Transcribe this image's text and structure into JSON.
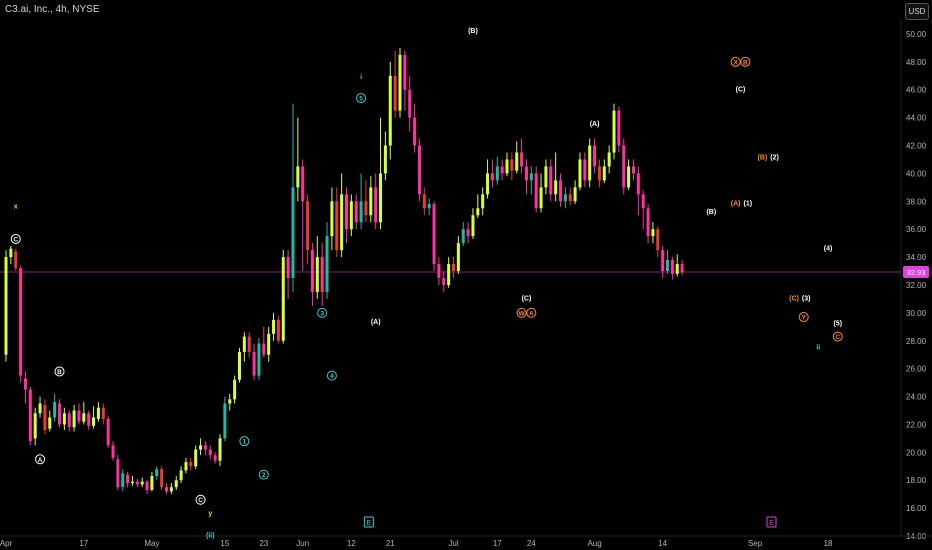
{
  "header": {
    "title": "C3.ai, Inc., 4h, NYSE",
    "currency_button": "USD"
  },
  "colors": {
    "up": "#d7ff3b",
    "up_alt": "#25b6a4",
    "down": "#ff2fa4",
    "down_alt": "#e83a3a",
    "hline": "#8a1a8a",
    "price_label_bg": "#e040e0",
    "cyan": "#2ad4d4",
    "orange": "#ff8c1a",
    "yellow": "#ffd21a",
    "white": "#ffffff"
  },
  "chart_data": {
    "type": "candlestick",
    "ylim": [
      14,
      51
    ],
    "y_ticks": [
      "14.00",
      "16.00",
      "18.00",
      "20.00",
      "22.00",
      "24.00",
      "26.00",
      "28.00",
      "30.00",
      "32.00",
      "34.00",
      "36.00",
      "38.00",
      "40.00",
      "42.00",
      "44.00",
      "46.00",
      "48.00",
      "50.00"
    ],
    "x_ticks": [
      {
        "label": "Apr",
        "x": 0
      },
      {
        "label": "17",
        "x": 16
      },
      {
        "label": "May",
        "x": 30
      },
      {
        "label": "15",
        "x": 45
      },
      {
        "label": "23",
        "x": 53
      },
      {
        "label": "Jun",
        "x": 61
      },
      {
        "label": "12",
        "x": 71
      },
      {
        "label": "21",
        "x": 79
      },
      {
        "label": "Jul",
        "x": 92
      },
      {
        "label": "17",
        "x": 101
      },
      {
        "label": "24",
        "x": 108
      },
      {
        "label": "Aug",
        "x": 121
      },
      {
        "label": "14",
        "x": 135
      },
      {
        "label": "Sep",
        "x": 154
      },
      {
        "label": "18",
        "x": 169
      }
    ],
    "x_range": [
      0,
      184
    ],
    "last_price": "32.93",
    "last_price_value": 32.93,
    "candles": [
      [
        0,
        27,
        34,
        34.5,
        26.5
      ],
      [
        1,
        34,
        34.6,
        34.8,
        33.5
      ],
      [
        2,
        34.4,
        33.2,
        34.6,
        33
      ],
      [
        3,
        33.2,
        25.5,
        33.4,
        25
      ],
      [
        4,
        25.3,
        24.5,
        25.8,
        23.5
      ],
      [
        5,
        24.5,
        20.8,
        24.7,
        20.5
      ],
      [
        6,
        21,
        22.8,
        23.2,
        20.5
      ],
      [
        7,
        22.8,
        23.5,
        24,
        22.5
      ],
      [
        8,
        23.4,
        21.6,
        23.8,
        21.3
      ],
      [
        9,
        21.7,
        22.5,
        23,
        21.5
      ],
      [
        10,
        22.5,
        23.6,
        24.2,
        22.2
      ],
      [
        11,
        23.5,
        22,
        23.8,
        21.8
      ],
      [
        12,
        22,
        22.8,
        23.2,
        21.6
      ],
      [
        13,
        22.8,
        21.8,
        23,
        21.5
      ],
      [
        14,
        21.8,
        23,
        23.4,
        21.5
      ],
      [
        15,
        23,
        22.2,
        23.5,
        22
      ],
      [
        16,
        22.2,
        22.8,
        23.6,
        22
      ],
      [
        17,
        22.8,
        21.9,
        23,
        21.6
      ],
      [
        18,
        21.9,
        22.5,
        23.3,
        21.7
      ],
      [
        19,
        22.4,
        23.2,
        23.6,
        22.2
      ],
      [
        20,
        23.2,
        22.4,
        23.5,
        22
      ],
      [
        21,
        22.4,
        20.5,
        22.6,
        20.3
      ],
      [
        22,
        20.5,
        19.6,
        20.8,
        19.4
      ],
      [
        23,
        19.5,
        17.5,
        19.8,
        17.3
      ],
      [
        24,
        17.5,
        18.5,
        18.8,
        17.2
      ],
      [
        25,
        18.4,
        17.8,
        18.6,
        17.5
      ],
      [
        26,
        17.8,
        17.9,
        18.3,
        17.6
      ],
      [
        27,
        17.9,
        17.7,
        18.1,
        17.5
      ],
      [
        28,
        17.7,
        17.9,
        18.2,
        17.5
      ],
      [
        29,
        17.9,
        17.3,
        18,
        17
      ],
      [
        30,
        17.3,
        18.3,
        18.6,
        17.2
      ],
      [
        31,
        18.3,
        18.8,
        19,
        18
      ],
      [
        32,
        18.8,
        17.5,
        19,
        17.3
      ],
      [
        33,
        17.5,
        17.2,
        17.8,
        17
      ],
      [
        34,
        17.2,
        17.5,
        17.8,
        17
      ],
      [
        35,
        17.5,
        18,
        18.3,
        17.3
      ],
      [
        36,
        18,
        18.7,
        19,
        17.8
      ],
      [
        37,
        18.7,
        19.3,
        19.6,
        18.5
      ],
      [
        38,
        19.3,
        19,
        19.6,
        18.7
      ],
      [
        39,
        19,
        20.2,
        20.5,
        18.8
      ],
      [
        40,
        20.2,
        20.5,
        21,
        19.8
      ],
      [
        41,
        20.5,
        20.2,
        20.8,
        19.8
      ],
      [
        42,
        20.2,
        19.8,
        20.5,
        19.5
      ],
      [
        43,
        19.8,
        19.4,
        20,
        19.2
      ],
      [
        44,
        19.4,
        21,
        21.3,
        19
      ],
      [
        45,
        21,
        23.5,
        24,
        20.8
      ],
      [
        46,
        23.5,
        23.8,
        24.2,
        23
      ],
      [
        47,
        23.8,
        25.2,
        25.5,
        23.5
      ],
      [
        48,
        25.2,
        27.2,
        27.5,
        25
      ],
      [
        49,
        27.2,
        28.3,
        28.6,
        26.5
      ],
      [
        50,
        28.3,
        27.2,
        28.6,
        26.8
      ],
      [
        51,
        27.2,
        25.5,
        27.8,
        25.2
      ],
      [
        52,
        25.5,
        27.8,
        28.2,
        25.2
      ],
      [
        53,
        27.8,
        27,
        29,
        26.8
      ],
      [
        54,
        27,
        28.5,
        29,
        26.5
      ],
      [
        55,
        28.5,
        29.5,
        30,
        28
      ],
      [
        56,
        29.5,
        28,
        29.8,
        27.8
      ],
      [
        57,
        28,
        34,
        34.5,
        27.8
      ],
      [
        58,
        34,
        32.5,
        34.5,
        31
      ],
      [
        59,
        32.5,
        39,
        45,
        31.5
      ],
      [
        60,
        39,
        40.5,
        44,
        38
      ],
      [
        61,
        40.5,
        38,
        41,
        33
      ],
      [
        62,
        38,
        34.5,
        38.5,
        33.5
      ],
      [
        63,
        34.5,
        31.5,
        35,
        30.5
      ],
      [
        64,
        31.5,
        34,
        35.5,
        31
      ],
      [
        65,
        34,
        31.5,
        35,
        30.5
      ],
      [
        66,
        31.5,
        35.5,
        36.5,
        31
      ],
      [
        67,
        35.5,
        38,
        39,
        34.5
      ],
      [
        68,
        38,
        34.5,
        39,
        34
      ],
      [
        69,
        34.5,
        38.5,
        40,
        34
      ],
      [
        70,
        38.5,
        36,
        39,
        35
      ],
      [
        71,
        36,
        38,
        38.5,
        35.5
      ],
      [
        72,
        38,
        36.5,
        38.5,
        36
      ],
      [
        73,
        36.5,
        38,
        40,
        36
      ],
      [
        74,
        38,
        37,
        39.5,
        36.5
      ],
      [
        75,
        37,
        39,
        39.8,
        36.5
      ],
      [
        76,
        39,
        36.5,
        40,
        36
      ],
      [
        77,
        36.5,
        40,
        44,
        36
      ],
      [
        78,
        40,
        42,
        43,
        39.5
      ],
      [
        79,
        42,
        47,
        48,
        41
      ],
      [
        80,
        47,
        44.5,
        48.8,
        44
      ],
      [
        81,
        44.5,
        48.5,
        49,
        44
      ],
      [
        82,
        48.5,
        46,
        48.8,
        44.5
      ],
      [
        83,
        46,
        44,
        47,
        43
      ],
      [
        84,
        44,
        42,
        45,
        41.5
      ],
      [
        85,
        42,
        38.5,
        42.5,
        38
      ],
      [
        86,
        38.5,
        37.5,
        39,
        37
      ],
      [
        87,
        37.5,
        37.8,
        38.2,
        37
      ],
      [
        88,
        37.8,
        33.5,
        38,
        33
      ],
      [
        89,
        33.5,
        32.5,
        34,
        32
      ],
      [
        90,
        32.5,
        32,
        33,
        31.5
      ],
      [
        91,
        32,
        33.5,
        34,
        31.8
      ],
      [
        92,
        33.5,
        33,
        34,
        32.5
      ],
      [
        93,
        33,
        35,
        35.5,
        32.8
      ],
      [
        94,
        35,
        36,
        36.5,
        34.8
      ],
      [
        95,
        36,
        35.5,
        36.5,
        35
      ],
      [
        96,
        35.5,
        37,
        37.5,
        35.3
      ],
      [
        97,
        37,
        37.5,
        38.5,
        36.8
      ],
      [
        98,
        37.5,
        38.5,
        39,
        37
      ],
      [
        99,
        38.5,
        40,
        41,
        38.2
      ],
      [
        100,
        40,
        39.5,
        41,
        39
      ],
      [
        101,
        39.5,
        40.5,
        41.2,
        39.2
      ],
      [
        102,
        40.5,
        40,
        41,
        39.5
      ],
      [
        103,
        40,
        41,
        41.5,
        39.8
      ],
      [
        104,
        41,
        40.2,
        41.5,
        39.5
      ],
      [
        105,
        40.2,
        41.5,
        42.3,
        40
      ],
      [
        106,
        41.5,
        40.5,
        42.5,
        40
      ],
      [
        107,
        40.5,
        39.5,
        41,
        38.5
      ],
      [
        108,
        39.5,
        40,
        40.5,
        38.5
      ],
      [
        109,
        40,
        37.5,
        40.5,
        37.2
      ],
      [
        110,
        37.5,
        39,
        40,
        37.2
      ],
      [
        111,
        39,
        40.5,
        41,
        38.5
      ],
      [
        112,
        40.5,
        38.5,
        41,
        38
      ],
      [
        113,
        38.5,
        39.5,
        41.5,
        38
      ],
      [
        114,
        39.5,
        38,
        40,
        37.6
      ],
      [
        115,
        38,
        38.5,
        39,
        37.5
      ],
      [
        116,
        38.5,
        38,
        39,
        37.7
      ],
      [
        117,
        38,
        39,
        39.5,
        37.8
      ],
      [
        118,
        39,
        41,
        41.5,
        38.8
      ],
      [
        119,
        41,
        39.5,
        41.5,
        39
      ],
      [
        120,
        39.5,
        42,
        42.5,
        39
      ],
      [
        121,
        42,
        40.5,
        42.5,
        40
      ],
      [
        122,
        40.5,
        39.5,
        41,
        39
      ],
      [
        123,
        39.5,
        40.5,
        41,
        39.3
      ],
      [
        124,
        40.5,
        41.5,
        42,
        40
      ],
      [
        125,
        41.5,
        44.5,
        45,
        41
      ],
      [
        126,
        44.5,
        42,
        44.8,
        41.5
      ],
      [
        127,
        42,
        39,
        42.5,
        38.5
      ],
      [
        128,
        39,
        40.5,
        41,
        38.8
      ],
      [
        129,
        40.5,
        40,
        41,
        39.5
      ],
      [
        130,
        40,
        38.5,
        40.5,
        37
      ],
      [
        131,
        38.5,
        37.5,
        38.8,
        36
      ],
      [
        132,
        37.5,
        35.5,
        37.8,
        35
      ],
      [
        133,
        35.5,
        36,
        36.5,
        35
      ],
      [
        134,
        36,
        34.5,
        36.2,
        34
      ],
      [
        135,
        34.5,
        33,
        34.8,
        32.5
      ],
      [
        136,
        33,
        33.8,
        34.5,
        32.8
      ],
      [
        137,
        33.8,
        32.8,
        34,
        32.4
      ],
      [
        138,
        32.8,
        33.5,
        34.2,
        32.6
      ],
      [
        139,
        33.5,
        32.9,
        33.8,
        32.7
      ]
    ],
    "annotations": [
      {
        "text": "x",
        "x": 2,
        "y": 37.7,
        "color": "yellow",
        "style": "plain"
      },
      {
        "text": "C",
        "x": 2,
        "y": 35.3,
        "color": "white",
        "style": "circle"
      },
      {
        "text": "B",
        "x": 11,
        "y": 25.8,
        "color": "white",
        "style": "circle"
      },
      {
        "text": "A",
        "x": 7,
        "y": 19.5,
        "color": "white",
        "style": "circle"
      },
      {
        "text": "C",
        "x": 40,
        "y": 16.6,
        "color": "white",
        "style": "circle"
      },
      {
        "text": "y",
        "x": 42,
        "y": 15.7,
        "color": "yellow",
        "style": "plain"
      },
      {
        "text": "(ii)",
        "x": 42,
        "y": 14.1,
        "color": "cyan",
        "style": "plain"
      },
      {
        "text": "1",
        "x": 49,
        "y": 20.8,
        "color": "cyan",
        "style": "circle"
      },
      {
        "text": "2",
        "x": 53,
        "y": 18.4,
        "color": "cyan",
        "style": "circle"
      },
      {
        "text": "3",
        "x": 65,
        "y": 30,
        "color": "cyan",
        "style": "circle"
      },
      {
        "text": "4",
        "x": 67,
        "y": 25.5,
        "color": "cyan",
        "style": "circle"
      },
      {
        "text": "i",
        "x": 73,
        "y": 47,
        "color": "cyan",
        "style": "plain"
      },
      {
        "text": "5",
        "x": 73,
        "y": 45.4,
        "color": "cyan",
        "style": "circle"
      },
      {
        "text": "(A)",
        "x": 76,
        "y": 29.4,
        "color": "white",
        "style": "plain"
      },
      {
        "text": "(B)",
        "x": 96,
        "y": 50.3,
        "color": "white",
        "style": "plain"
      },
      {
        "text": "(C)",
        "x": 107,
        "y": 31.1,
        "color": "white",
        "style": "plain"
      },
      {
        "text": "W",
        "x": 106,
        "y": 30,
        "color": "orange",
        "style": "circle"
      },
      {
        "text": "A",
        "x": 108,
        "y": 30,
        "color": "orange",
        "style": "circle"
      },
      {
        "text": "(A)",
        "x": 121,
        "y": 43.6,
        "color": "white",
        "style": "plain"
      },
      {
        "text": "(B)",
        "x": 145,
        "y": 37.3,
        "color": "white",
        "style": "plain"
      },
      {
        "text": "X",
        "x": 150,
        "y": 48,
        "color": "orange",
        "style": "circle"
      },
      {
        "text": "B",
        "x": 152,
        "y": 48,
        "color": "orange",
        "style": "circle"
      },
      {
        "text": "(C)",
        "x": 151,
        "y": 46.1,
        "color": "white",
        "style": "plain"
      },
      {
        "text": "(B)",
        "x": 155.5,
        "y": 41.2,
        "color": "orange",
        "style": "plain"
      },
      {
        "text": "(2)",
        "x": 158,
        "y": 41.2,
        "color": "white",
        "style": "plain"
      },
      {
        "text": "(A)",
        "x": 150,
        "y": 37.9,
        "color": "orange",
        "style": "plain"
      },
      {
        "text": "(1)",
        "x": 152.5,
        "y": 37.9,
        "color": "white",
        "style": "plain"
      },
      {
        "text": "(4)",
        "x": 169,
        "y": 34.7,
        "color": "white",
        "style": "plain"
      },
      {
        "text": "(C)",
        "x": 162,
        "y": 31.1,
        "color": "orange",
        "style": "plain"
      },
      {
        "text": "(3)",
        "x": 164.5,
        "y": 31.1,
        "color": "white",
        "style": "plain"
      },
      {
        "text": "Y",
        "x": 164,
        "y": 29.7,
        "color": "orange",
        "style": "circle"
      },
      {
        "text": "(5)",
        "x": 171,
        "y": 29.3,
        "color": "white",
        "style": "plain"
      },
      {
        "text": "C",
        "x": 171,
        "y": 28.3,
        "color": "orange",
        "style": "circle"
      },
      {
        "text": "ii",
        "x": 167,
        "y": 27.6,
        "color": "cyan",
        "style": "plain"
      }
    ],
    "event_markers": [
      {
        "text": "E",
        "x": 74.5,
        "color": "cyan"
      },
      {
        "text": "E",
        "x": 190,
        "color": "magenta"
      }
    ]
  }
}
